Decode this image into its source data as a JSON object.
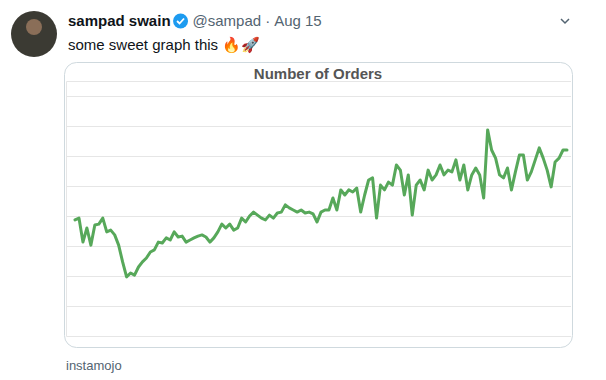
{
  "tweet": {
    "author": "sampad swain",
    "handle": "@sampad",
    "separator": "·",
    "date": "Aug 15",
    "text": "some sweet graph this 🔥🚀",
    "source": "instamojo"
  },
  "chart_data": {
    "type": "line",
    "title": "Number of Orders",
    "color": "#57a85a",
    "grid": true,
    "tick_labels": false,
    "ylim": [
      0,
      8.5
    ],
    "yticks": [
      1,
      2,
      3,
      4,
      5,
      6,
      7,
      8
    ],
    "categories": [
      null,
      null,
      null,
      null,
      null,
      null,
      null,
      null,
      null,
      null,
      null,
      null,
      null,
      null,
      null,
      null,
      null,
      null,
      null,
      null,
      null,
      null,
      null,
      null,
      null,
      null,
      null,
      null,
      null,
      null,
      null,
      null,
      null,
      null,
      null,
      null,
      null,
      null,
      null,
      null,
      null,
      null,
      null,
      null,
      null,
      null,
      null,
      null,
      null,
      null,
      null,
      null,
      null,
      null,
      null,
      null,
      null,
      null,
      null,
      null,
      null,
      null,
      null,
      null,
      null,
      null,
      null,
      null,
      null,
      null,
      null,
      null,
      null,
      null,
      null,
      null,
      null,
      null,
      null,
      null,
      null,
      null,
      null,
      null,
      null,
      null,
      null,
      null,
      null,
      null,
      null,
      null,
      null,
      null,
      null,
      null,
      null,
      null,
      null,
      null,
      null,
      null,
      null,
      null,
      null,
      null,
      null,
      null,
      null,
      null,
      null,
      null,
      null,
      null,
      null,
      null,
      null,
      null,
      null,
      null,
      null,
      null,
      null,
      null,
      null
    ],
    "values": [
      3.87,
      3.93,
      3.13,
      3.6,
      3.03,
      3.7,
      3.73,
      3.93,
      3.47,
      3.53,
      3.37,
      3.03,
      2.47,
      1.97,
      2.1,
      2.03,
      2.3,
      2.47,
      2.6,
      2.8,
      2.87,
      3.13,
      3.1,
      3.27,
      3.2,
      3.47,
      3.3,
      3.33,
      3.13,
      3.2,
      3.27,
      3.33,
      3.37,
      3.3,
      3.13,
      3.27,
      3.47,
      3.73,
      3.6,
      3.73,
      3.53,
      3.6,
      3.93,
      3.8,
      4.0,
      4.13,
      4.03,
      3.93,
      3.87,
      4.03,
      3.93,
      4.1,
      4.13,
      4.37,
      4.27,
      4.2,
      4.13,
      4.2,
      4.1,
      4.13,
      4.07,
      3.8,
      4.13,
      4.2,
      4.2,
      4.6,
      4.2,
      4.87,
      4.7,
      4.87,
      4.8,
      4.93,
      4.13,
      4.7,
      5.2,
      5.27,
      3.93,
      5.03,
      4.87,
      5.13,
      5.03,
      5.7,
      5.53,
      4.7,
      5.37,
      4.03,
      5.03,
      5.2,
      4.87,
      5.53,
      5.2,
      5.37,
      5.7,
      5.37,
      5.53,
      5.47,
      5.87,
      5.2,
      5.7,
      4.87,
      5.37,
      5.6,
      5.37,
      4.6,
      6.87,
      6.2,
      5.93,
      5.37,
      5.27,
      5.6,
      4.87,
      5.47,
      6.03,
      6.03,
      5.2,
      5.47,
      5.87,
      6.27,
      5.93,
      5.53,
      4.97,
      5.8,
      5.93,
      6.2,
      6.2
    ]
  }
}
